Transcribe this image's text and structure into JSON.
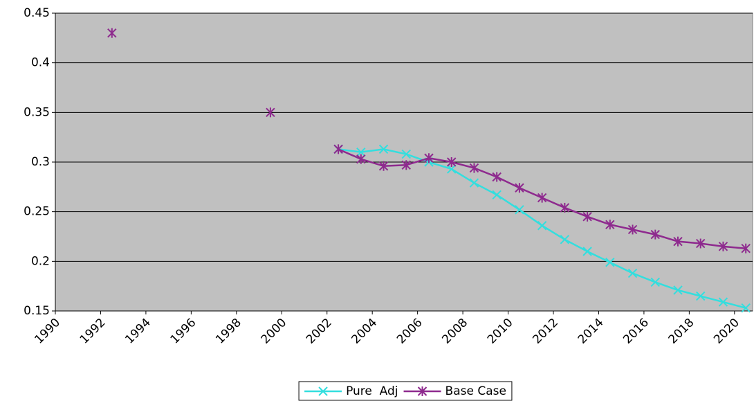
{
  "chart_data": {
    "type": "line",
    "x": [
      1992.5,
      1993.5,
      1994.5,
      1995.5,
      1996.5,
      1997.5,
      1998.5,
      1999.5,
      2000.5,
      2001.5,
      2002.5,
      2003.5,
      2004.5,
      2005.5,
      2006.5,
      2007.5,
      2008.5,
      2009.5,
      2010.5,
      2011.5,
      2012.5,
      2013.5,
      2014.5,
      2015.5,
      2016.5,
      2017.5,
      2018.5,
      2019.5,
      2020.5
    ],
    "series": [
      {
        "name": "Pure  Adj",
        "color": "#33dede",
        "marker": "x",
        "values": [
          null,
          null,
          null,
          null,
          null,
          null,
          null,
          null,
          null,
          null,
          0.313,
          0.31,
          0.313,
          0.308,
          0.3,
          0.293,
          0.279,
          0.267,
          0.252,
          0.236,
          0.222,
          0.21,
          0.199,
          0.188,
          0.179,
          0.171,
          0.165,
          0.159,
          0.153
        ]
      },
      {
        "name": "Base Case",
        "color": "#8e2a8e",
        "marker": "asterisk",
        "values": [
          0.43,
          null,
          null,
          null,
          null,
          null,
          null,
          0.35,
          null,
          null,
          0.313,
          0.303,
          0.296,
          0.297,
          0.304,
          0.3,
          0.294,
          0.285,
          0.274,
          0.264,
          0.254,
          0.245,
          0.237,
          0.232,
          0.227,
          0.22,
          0.218,
          0.215,
          0.213
        ]
      }
    ],
    "xlim": [
      1990,
      2020.8
    ],
    "xticks": [
      1990,
      1992,
      1994,
      1996,
      1998,
      2000,
      2002,
      2004,
      2006,
      2008,
      2010,
      2012,
      2014,
      2016,
      2018,
      2020
    ],
    "ylim": [
      0.15,
      0.45
    ],
    "yticks": [
      0.15,
      0.2,
      0.25,
      0.3,
      0.35,
      0.4,
      0.45
    ],
    "grid": true,
    "legend": "bottom"
  }
}
